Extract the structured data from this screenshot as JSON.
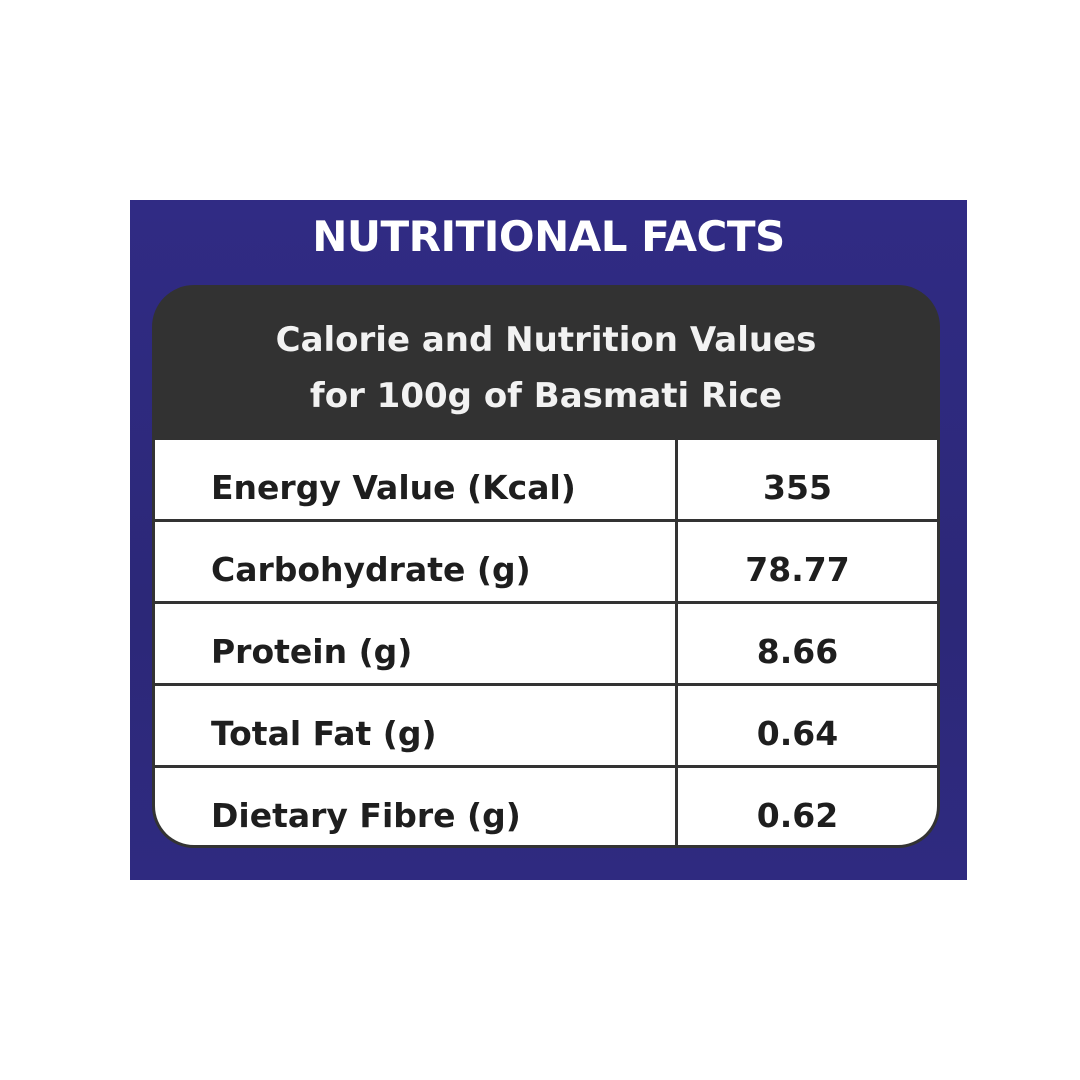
{
  "header": {
    "title": "NUTRITIONAL FACTS"
  },
  "table": {
    "caption": [
      "Calorie and Nutrition Values",
      "for 100g of Basmati Rice"
    ],
    "rows": [
      [
        "Energy Value (Kcal)",
        355
      ],
      [
        "Carbohydrate (g)",
        78.77
      ],
      [
        "Protein (g)",
        8.66
      ],
      [
        "Total Fat (g)",
        0.64
      ],
      [
        "Dietary Fibre (g)",
        0.62
      ]
    ]
  }
}
